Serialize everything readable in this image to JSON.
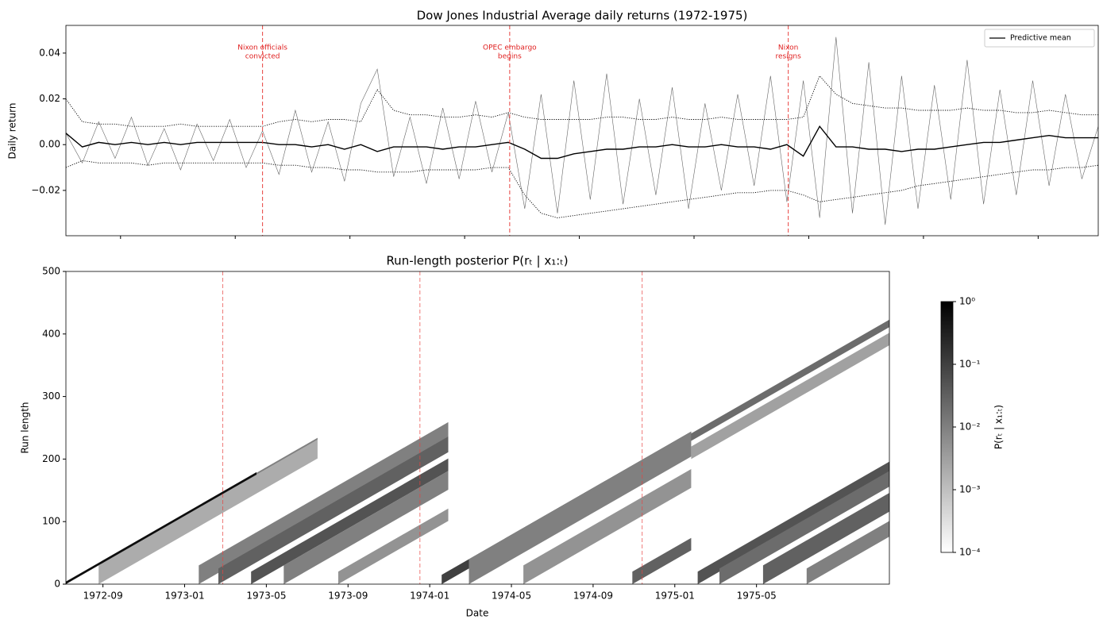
{
  "chart_data": [
    {
      "type": "line",
      "title": "Dow Jones Industrial Average daily returns (1972-1975)",
      "y_label": "Daily return",
      "xlim": [
        0,
        756
      ],
      "xticks": [
        40,
        124,
        208,
        292,
        376,
        460,
        544,
        628,
        712
      ],
      "ylim": [
        -0.0398,
        0.0521
      ],
      "yticks": [
        {
          "value": -0.02,
          "label": "−0.02"
        },
        {
          "value": 0,
          "label": "0.00"
        },
        0.02,
        0.04
      ],
      "legend": "upper right",
      "x": [
        0,
        12,
        24,
        36,
        48,
        60,
        72,
        84,
        96,
        108,
        120,
        132,
        144,
        156,
        168,
        180,
        192,
        204,
        216,
        228,
        240,
        252,
        264,
        276,
        288,
        300,
        312,
        324,
        336,
        348,
        360,
        372,
        384,
        396,
        408,
        420,
        432,
        444,
        456,
        468,
        480,
        492,
        504,
        516,
        528,
        540,
        552,
        564,
        576,
        588,
        600,
        612,
        624,
        636,
        648,
        660,
        672,
        684,
        696,
        708,
        720,
        732,
        744,
        756
      ],
      "series": [
        {
          "color": "#666666",
          "linestyle": "solid",
          "values": [
            0.005,
            -0.008,
            0.01,
            -0.006,
            0.012,
            -0.009,
            0.007,
            -0.011,
            0.009,
            -0.007,
            0.011,
            -0.01,
            0.006,
            -0.013,
            0.015,
            -0.012,
            0.01,
            -0.016,
            0.018,
            0.033,
            -0.014,
            0.012,
            -0.017,
            0.016,
            -0.015,
            0.019,
            -0.012,
            0.014,
            -0.028,
            0.022,
            -0.03,
            0.028,
            -0.024,
            0.031,
            -0.026,
            0.02,
            -0.022,
            0.025,
            -0.028,
            0.018,
            -0.02,
            0.022,
            -0.018,
            0.03,
            -0.025,
            0.028,
            -0.032,
            0.047,
            -0.03,
            0.036,
            -0.035,
            0.03,
            -0.028,
            0.026,
            -0.024,
            0.037,
            -0.026,
            0.024,
            -0.022,
            0.028,
            -0.018,
            0.022,
            -0.015,
            0.008
          ]
        },
        {
          "name": "Predictive mean",
          "color": "#000000",
          "linestyle": "solid",
          "values": [
            0.005,
            -0.001,
            0.001,
            0,
            0.001,
            0,
            0.001,
            0,
            0.001,
            0.001,
            0.001,
            0.001,
            0.001,
            0,
            0,
            -0.001,
            0,
            -0.002,
            0,
            -0.003,
            -0.001,
            -0.001,
            -0.001,
            -0.002,
            -0.001,
            -0.001,
            0,
            0.001,
            -0.002,
            -0.006,
            -0.006,
            -0.004,
            -0.003,
            -0.002,
            -0.002,
            -0.001,
            -0.001,
            0,
            -0.001,
            -0.001,
            0,
            -0.001,
            -0.001,
            -0.002,
            0,
            -0.005,
            0.008,
            -0.001,
            -0.001,
            -0.002,
            -0.002,
            -0.003,
            -0.002,
            -0.002,
            -0.001,
            0,
            0.001,
            0.001,
            0.002,
            0.003,
            0.004,
            0.003,
            0.003,
            0.003
          ]
        },
        {
          "color": "#000000",
          "linestyle": "dotted",
          "values": [
            0.02,
            0.01,
            0.009,
            0.009,
            0.008,
            0.008,
            0.008,
            0.009,
            0.008,
            0.008,
            0.008,
            0.008,
            0.008,
            0.01,
            0.011,
            0.01,
            0.011,
            0.011,
            0.01,
            0.024,
            0.015,
            0.013,
            0.013,
            0.012,
            0.012,
            0.013,
            0.012,
            0.014,
            0.012,
            0.011,
            0.011,
            0.011,
            0.011,
            0.012,
            0.012,
            0.011,
            0.011,
            0.012,
            0.011,
            0.011,
            0.012,
            0.011,
            0.011,
            0.011,
            0.011,
            0.012,
            0.03,
            0.022,
            0.018,
            0.017,
            0.016,
            0.016,
            0.015,
            0.015,
            0.015,
            0.016,
            0.015,
            0.015,
            0.014,
            0.014,
            0.015,
            0.014,
            0.013,
            0.013
          ]
        },
        {
          "color": "#000000",
          "linestyle": "dotted",
          "values": [
            -0.01,
            -0.007,
            -0.008,
            -0.008,
            -0.008,
            -0.009,
            -0.008,
            -0.008,
            -0.008,
            -0.008,
            -0.008,
            -0.008,
            -0.008,
            -0.009,
            -0.009,
            -0.01,
            -0.01,
            -0.011,
            -0.011,
            -0.012,
            -0.012,
            -0.012,
            -0.011,
            -0.011,
            -0.011,
            -0.011,
            -0.01,
            -0.01,
            -0.022,
            -0.03,
            -0.032,
            -0.031,
            -0.03,
            -0.029,
            -0.028,
            -0.027,
            -0.026,
            -0.025,
            -0.024,
            -0.023,
            -0.022,
            -0.021,
            -0.021,
            -0.02,
            -0.02,
            -0.022,
            -0.025,
            -0.024,
            -0.023,
            -0.022,
            -0.021,
            -0.02,
            -0.018,
            -0.017,
            -0.016,
            -0.015,
            -0.014,
            -0.013,
            -0.012,
            -0.011,
            -0.011,
            -0.01,
            -0.01,
            -0.009
          ]
        }
      ],
      "events": [
        {
          "x": 144,
          "label": [
            "Nixon officials",
            "convicted"
          ]
        },
        {
          "x": 325,
          "label": [
            "OPEC embargo",
            "begins"
          ]
        },
        {
          "x": 529,
          "label": [
            "Nixon",
            "resigns"
          ]
        }
      ],
      "event_color": "#e8423f"
    },
    {
      "type": "heatmap",
      "title": "Run-length posterior P(rₜ | x₁:ₜ)",
      "x_label": "Date",
      "y_label": "Run length",
      "xlim": [
        0,
        756
      ],
      "xticks": [
        {
          "value": 34,
          "label": "1972-09"
        },
        {
          "value": 109,
          "label": "1973-01"
        },
        {
          "value": 184,
          "label": "1973-05"
        },
        {
          "value": 259,
          "label": "1973-09"
        },
        {
          "value": 334,
          "label": "1974-01"
        },
        {
          "value": 409,
          "label": "1974-05"
        },
        {
          "value": 484,
          "label": "1974-09"
        },
        {
          "value": 559,
          "label": "1975-01"
        },
        {
          "value": 634,
          "label": "1975-05"
        }
      ],
      "ylim": [
        0,
        500
      ],
      "yticks": [
        0,
        100,
        200,
        300,
        400,
        500
      ],
      "events": [
        144,
        325,
        529
      ],
      "event_color": "#e8423f",
      "bands": [
        {
          "x": [
            30,
            231
          ],
          "r0": 0,
          "width": 30,
          "p": 0.002
        },
        {
          "x": [
            122,
            351
          ],
          "r0": 0,
          "width": 30,
          "p": 0.01
        },
        {
          "x": [
            140,
            351
          ],
          "r0": 0,
          "width": 25,
          "p": 0.03
        },
        {
          "x": [
            170,
            351
          ],
          "r0": 0,
          "width": 20,
          "p": 0.05
        },
        {
          "x": [
            200,
            351
          ],
          "r0": 0,
          "width": 30,
          "p": 0.01
        },
        {
          "x": [
            250,
            351
          ],
          "r0": 0,
          "width": 20,
          "p": 0.005
        },
        {
          "x": [
            345,
            574
          ],
          "r0": 0,
          "width": 15,
          "p": 0.1
        },
        {
          "x": [
            370,
            574
          ],
          "r0": 0,
          "width": 40,
          "p": 0.01
        },
        {
          "x": [
            420,
            574
          ],
          "r0": 0,
          "width": 30,
          "p": 0.005
        },
        {
          "x": [
            520,
            574
          ],
          "r0": 0,
          "width": 20,
          "p": 0.03
        },
        {
          "x": [
            574,
            756
          ],
          "r0": 200,
          "width": 20,
          "p": 0.003
        },
        {
          "x": [
            574,
            756
          ],
          "r0": 229,
          "width": 12,
          "p": 0.02
        },
        {
          "x": [
            580,
            756
          ],
          "r0": 0,
          "width": 20,
          "p": 0.05
        },
        {
          "x": [
            600,
            756
          ],
          "r0": 0,
          "width": 25,
          "p": 0.02
        },
        {
          "x": [
            640,
            756
          ],
          "r0": 0,
          "width": 30,
          "p": 0.03
        },
        {
          "x": [
            680,
            756
          ],
          "r0": 0,
          "width": 25,
          "p": 0.01
        },
        {
          "x": [
            175,
            231
          ],
          "r0": 175,
          "width": 3,
          "p": 0.01
        },
        {
          "x": [
            0,
            175
          ],
          "r0": 0,
          "width": 4,
          "p": 0.6
        }
      ],
      "colorbar": {
        "label": "P(rₜ | x₁:ₜ)",
        "scale": "log",
        "clim": [
          0.0001,
          1
        ],
        "ticks": [
          {
            "value": 1,
            "label": "10⁰"
          },
          {
            "value": 0.1,
            "label": "10⁻¹"
          },
          {
            "value": 0.01,
            "label": "10⁻²"
          },
          {
            "value": 0.001,
            "label": "10⁻³"
          },
          {
            "value": 0.0001,
            "label": "10⁻⁴"
          }
        ]
      }
    }
  ]
}
